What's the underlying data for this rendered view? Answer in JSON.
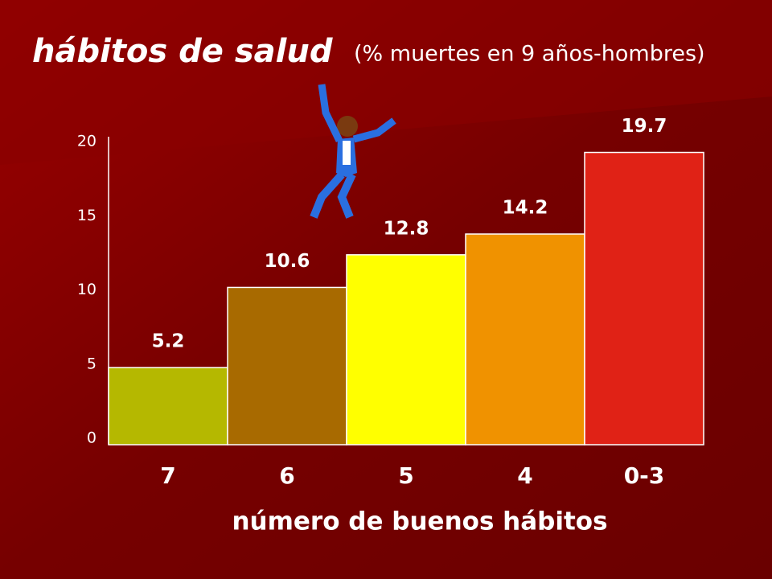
{
  "chart_data": {
    "type": "bar",
    "title": "hábitos de salud",
    "subtitle": "(% muertes en 9 años-hombres)",
    "x_label": "número de buenos hábitos",
    "categories": [
      "7",
      "6",
      "5",
      "4",
      "0-3"
    ],
    "values": [
      5.2,
      10.6,
      12.8,
      14.2,
      19.7
    ],
    "colors": [
      "#b5b800",
      "#a86a00",
      "#ffff00",
      "#f09200",
      "#e02216"
    ],
    "ylim": [
      0,
      20
    ],
    "yticks": [
      0,
      5,
      10,
      15,
      20
    ],
    "grid": false
  }
}
